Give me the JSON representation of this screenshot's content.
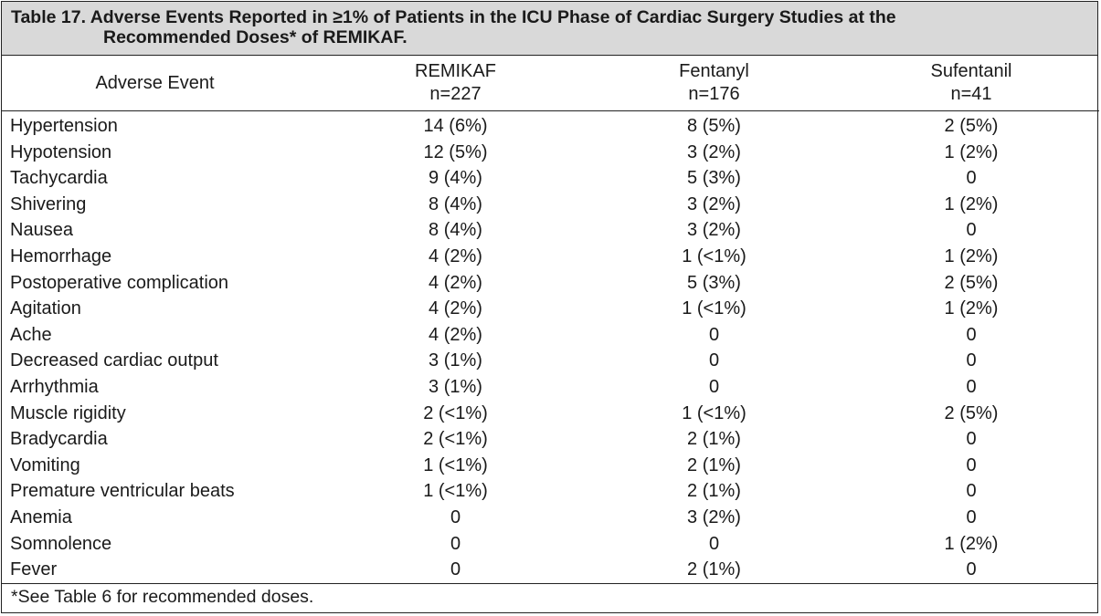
{
  "caption": {
    "line1": "Table 17. Adverse Events Reported in ≥1% of Patients in the ICU Phase of Cardiac Surgery Studies at the",
    "line2": "Recommended Doses* of REMIKAF."
  },
  "columns": [
    {
      "label": "Adverse Event",
      "n": ""
    },
    {
      "label": "REMIKAF",
      "n": "n=227"
    },
    {
      "label": "Fentanyl",
      "n": "n=176"
    },
    {
      "label": "Sufentanil",
      "n": "n=41"
    }
  ],
  "rows": [
    {
      "event": "Hypertension",
      "remikaf": "14 (6%)",
      "fentanyl": "8 (5%)",
      "sufentanil": "2 (5%)"
    },
    {
      "event": "Hypotension",
      "remikaf": "12 (5%)",
      "fentanyl": "3 (2%)",
      "sufentanil": "1 (2%)"
    },
    {
      "event": "Tachycardia",
      "remikaf": "9 (4%)",
      "fentanyl": "5 (3%)",
      "sufentanil": "0"
    },
    {
      "event": "Shivering",
      "remikaf": "8 (4%)",
      "fentanyl": "3 (2%)",
      "sufentanil": "1 (2%)"
    },
    {
      "event": "Nausea",
      "remikaf": "8 (4%)",
      "fentanyl": "3 (2%)",
      "sufentanil": "0"
    },
    {
      "event": "Hemorrhage",
      "remikaf": "4 (2%)",
      "fentanyl": "1 (<1%)",
      "sufentanil": "1 (2%)"
    },
    {
      "event": "Postoperative complication",
      "remikaf": "4 (2%)",
      "fentanyl": "5 (3%)",
      "sufentanil": "2 (5%)"
    },
    {
      "event": "Agitation",
      "remikaf": "4 (2%)",
      "fentanyl": "1 (<1%)",
      "sufentanil": "1 (2%)"
    },
    {
      "event": "Ache",
      "remikaf": "4 (2%)",
      "fentanyl": "0",
      "sufentanil": "0"
    },
    {
      "event": "Decreased cardiac output",
      "remikaf": "3 (1%)",
      "fentanyl": "0",
      "sufentanil": "0"
    },
    {
      "event": "Arrhythmia",
      "remikaf": "3 (1%)",
      "fentanyl": "0",
      "sufentanil": "0"
    },
    {
      "event": "Muscle rigidity",
      "remikaf": "2 (<1%)",
      "fentanyl": "1 (<1%)",
      "sufentanil": "2 (5%)"
    },
    {
      "event": "Bradycardia",
      "remikaf": "2 (<1%)",
      "fentanyl": "2 (1%)",
      "sufentanil": "0"
    },
    {
      "event": "Vomiting",
      "remikaf": "1 (<1%)",
      "fentanyl": "2 (1%)",
      "sufentanil": "0"
    },
    {
      "event": "Premature ventricular beats",
      "remikaf": "1 (<1%)",
      "fentanyl": "2 (1%)",
      "sufentanil": "0"
    },
    {
      "event": "Anemia",
      "remikaf": "0",
      "fentanyl": "3 (2%)",
      "sufentanil": "0"
    },
    {
      "event": "Somnolence",
      "remikaf": "0",
      "fentanyl": "0",
      "sufentanil": "1 (2%)"
    },
    {
      "event": "Fever",
      "remikaf": "0",
      "fentanyl": "2 (1%)",
      "sufentanil": "0"
    }
  ],
  "footnote": "*See Table 6 for recommended doses.",
  "colors": {
    "caption_background": "#d9d9d9",
    "border": "#222222"
  }
}
